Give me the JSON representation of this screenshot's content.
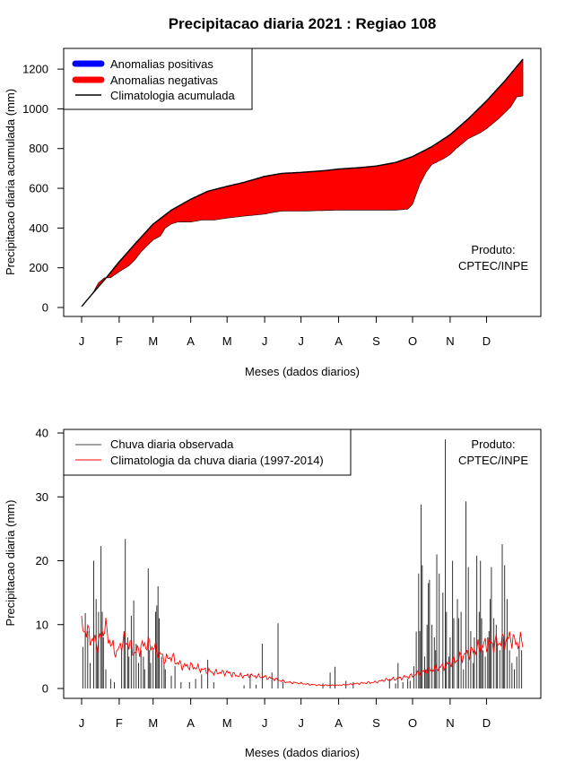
{
  "title": "Precipitacao diaria 2021 : Regiao 108",
  "chart_data": [
    {
      "type": "area",
      "name": "accumulated",
      "ylabel": "Precipitacao diaria acumulada (mm)",
      "xlabel": "Meses (dados diarios)",
      "month_ticks": [
        "J",
        "F",
        "M",
        "A",
        "M",
        "J",
        "J",
        "A",
        "S",
        "O",
        "N",
        "D"
      ],
      "month_tick_days": [
        1,
        32,
        60,
        91,
        121,
        152,
        182,
        213,
        244,
        274,
        305,
        335
      ],
      "xlim": [
        1,
        365
      ],
      "ylim": [
        0,
        1250
      ],
      "yticks": [
        0,
        200,
        400,
        600,
        800,
        1000,
        1200
      ],
      "legend": {
        "position": "top-left",
        "items": [
          {
            "label": "Anomalias positivas",
            "color": "#0000ff",
            "kind": "thick"
          },
          {
            "label": "Anomalias negativas",
            "color": "#ff0000",
            "kind": "thick"
          },
          {
            "label": "Climatologia acumulada",
            "color": "#000000",
            "kind": "line"
          }
        ]
      },
      "annotation": [
        "Produto:",
        "CPTEC/INPE"
      ],
      "colors": {
        "negative": "#ff0000",
        "positive": "#0000ff",
        "line": "#000000"
      },
      "climatology_cumulative": {
        "days": [
          1,
          10,
          20,
          32,
          45,
          60,
          75,
          91,
          105,
          121,
          135,
          152,
          166,
          182,
          200,
          213,
          230,
          244,
          260,
          274,
          290,
          305,
          320,
          335,
          350,
          365
        ],
        "values": [
          5,
          70,
          140,
          230,
          320,
          420,
          490,
          545,
          585,
          610,
          630,
          660,
          675,
          680,
          688,
          697,
          704,
          712,
          730,
          760,
          810,
          870,
          950,
          1040,
          1140,
          1250
        ]
      },
      "observed_cumulative": {
        "days": [
          1,
          10,
          15,
          20,
          25,
          32,
          40,
          45,
          50,
          60,
          66,
          70,
          75,
          80,
          91,
          100,
          110,
          121,
          135,
          152,
          160,
          166,
          182,
          200,
          213,
          230,
          244,
          260,
          270,
          274,
          280,
          285,
          290,
          300,
          305,
          310,
          320,
          330,
          335,
          345,
          350,
          355,
          358,
          360,
          365
        ],
        "values": [
          5,
          70,
          125,
          150,
          150,
          180,
          210,
          240,
          280,
          340,
          360,
          400,
          420,
          430,
          430,
          440,
          440,
          450,
          460,
          470,
          480,
          485,
          485,
          488,
          490,
          490,
          490,
          490,
          495,
          520,
          620,
          680,
          720,
          750,
          770,
          800,
          850,
          880,
          900,
          950,
          980,
          1010,
          1040,
          1060,
          1065
        ]
      }
    },
    {
      "type": "bar",
      "name": "daily",
      "ylabel": "Precipitacao diaria (mm)",
      "xlabel": "Meses (dados diarios)",
      "month_ticks": [
        "J",
        "F",
        "M",
        "A",
        "M",
        "J",
        "J",
        "A",
        "S",
        "O",
        "N",
        "D"
      ],
      "month_tick_days": [
        1,
        32,
        60,
        91,
        121,
        152,
        182,
        213,
        244,
        274,
        305,
        335
      ],
      "xlim": [
        1,
        365
      ],
      "ylim": [
        0,
        40
      ],
      "yticks": [
        0,
        10,
        20,
        30,
        40
      ],
      "legend": {
        "position": "top-left",
        "items": [
          {
            "label": "Chuva diaria observada",
            "color": "#444444",
            "kind": "line"
          },
          {
            "label": "Climatologia da chuva diaria (1997-2014)",
            "color": "#ff0000",
            "kind": "line"
          }
        ]
      },
      "annotation": [
        "Produto:",
        "CPTEC/INPE"
      ],
      "colors": {
        "bars": "#333333",
        "climatology": "#ff0000"
      },
      "observed_peaks": [
        {
          "day": 2,
          "value": 6.5
        },
        {
          "day": 4,
          "value": 11.8
        },
        {
          "day": 6,
          "value": 9.0
        },
        {
          "day": 8,
          "value": 4.0
        },
        {
          "day": 11,
          "value": 20.0
        },
        {
          "day": 13,
          "value": 14.0
        },
        {
          "day": 14,
          "value": 6.0
        },
        {
          "day": 15,
          "value": 12.0
        },
        {
          "day": 17,
          "value": 22.3
        },
        {
          "day": 18,
          "value": 12.0
        },
        {
          "day": 19,
          "value": 8.0
        },
        {
          "day": 21,
          "value": 3.0
        },
        {
          "day": 25,
          "value": 1.5
        },
        {
          "day": 28,
          "value": 1.0
        },
        {
          "day": 34,
          "value": 6.0
        },
        {
          "day": 36,
          "value": 9.0
        },
        {
          "day": 37,
          "value": 23.4
        },
        {
          "day": 39,
          "value": 8.0
        },
        {
          "day": 40,
          "value": 5.0
        },
        {
          "day": 42,
          "value": 11.4
        },
        {
          "day": 44,
          "value": 13.8
        },
        {
          "day": 46,
          "value": 7.0
        },
        {
          "day": 48,
          "value": 4.0
        },
        {
          "day": 50,
          "value": 6.0
        },
        {
          "day": 52,
          "value": 5.0
        },
        {
          "day": 53,
          "value": 3.0
        },
        {
          "day": 56,
          "value": 18.8
        },
        {
          "day": 57,
          "value": 6.0
        },
        {
          "day": 58,
          "value": 4.0
        },
        {
          "day": 60,
          "value": 6.0
        },
        {
          "day": 62,
          "value": 12.0
        },
        {
          "day": 63,
          "value": 13.0
        },
        {
          "day": 64,
          "value": 16.0
        },
        {
          "day": 65,
          "value": 11.0
        },
        {
          "day": 67,
          "value": 5.0
        },
        {
          "day": 69,
          "value": 4.0
        },
        {
          "day": 70,
          "value": 3.0
        },
        {
          "day": 75,
          "value": 2.0
        },
        {
          "day": 78,
          "value": 3.5
        },
        {
          "day": 83,
          "value": 1.0
        },
        {
          "day": 90,
          "value": 1.0
        },
        {
          "day": 95,
          "value": 1.5
        },
        {
          "day": 100,
          "value": 2.2
        },
        {
          "day": 105,
          "value": 4.5
        },
        {
          "day": 110,
          "value": 1.0
        },
        {
          "day": 135,
          "value": 0.5
        },
        {
          "day": 140,
          "value": 2.2
        },
        {
          "day": 145,
          "value": 0.6
        },
        {
          "day": 150,
          "value": 7.0
        },
        {
          "day": 158,
          "value": 2.5
        },
        {
          "day": 163,
          "value": 10.2
        },
        {
          "day": 167,
          "value": 1.0
        },
        {
          "day": 200,
          "value": 0.8
        },
        {
          "day": 206,
          "value": 2.5
        },
        {
          "day": 210,
          "value": 3.4
        },
        {
          "day": 219,
          "value": 1.2
        },
        {
          "day": 225,
          "value": 1.0
        },
        {
          "day": 255,
          "value": 1.5
        },
        {
          "day": 260,
          "value": 0.8
        },
        {
          "day": 262,
          "value": 4.0
        },
        {
          "day": 266,
          "value": 1.0
        },
        {
          "day": 270,
          "value": 1.5
        },
        {
          "day": 272,
          "value": 1.2
        },
        {
          "day": 275,
          "value": 3.5
        },
        {
          "day": 277,
          "value": 8.9
        },
        {
          "day": 279,
          "value": 18.0
        },
        {
          "day": 280,
          "value": 9.0
        },
        {
          "day": 281,
          "value": 28.8
        },
        {
          "day": 282,
          "value": 19.3
        },
        {
          "day": 284,
          "value": 5.0
        },
        {
          "day": 285,
          "value": 3.0
        },
        {
          "day": 286,
          "value": 10.0
        },
        {
          "day": 287,
          "value": 16.5
        },
        {
          "day": 288,
          "value": 17.0
        },
        {
          "day": 290,
          "value": 10.0
        },
        {
          "day": 292,
          "value": 8.0
        },
        {
          "day": 293,
          "value": 6.0
        },
        {
          "day": 294,
          "value": 21.0
        },
        {
          "day": 296,
          "value": 18.0
        },
        {
          "day": 299,
          "value": 15.0
        },
        {
          "day": 301,
          "value": 39.0
        },
        {
          "day": 302,
          "value": 12.0
        },
        {
          "day": 304,
          "value": 5.0
        },
        {
          "day": 305,
          "value": 8.0
        },
        {
          "day": 307,
          "value": 20.0
        },
        {
          "day": 308,
          "value": 11.0
        },
        {
          "day": 311,
          "value": 14.0
        },
        {
          "day": 312,
          "value": 11.0
        },
        {
          "day": 314,
          "value": 12.0
        },
        {
          "day": 316,
          "value": 3.0
        },
        {
          "day": 318,
          "value": 29.3
        },
        {
          "day": 320,
          "value": 19.0
        },
        {
          "day": 322,
          "value": 9.0
        },
        {
          "day": 324,
          "value": 4.0
        },
        {
          "day": 325,
          "value": 8.0
        },
        {
          "day": 327,
          "value": 20.8
        },
        {
          "day": 329,
          "value": 12.0
        },
        {
          "day": 330,
          "value": 20.0
        },
        {
          "day": 331,
          "value": 11.0
        },
        {
          "day": 332,
          "value": 6.0
        },
        {
          "day": 334,
          "value": 5.0
        },
        {
          "day": 336,
          "value": 8.0
        },
        {
          "day": 337,
          "value": 9.0
        },
        {
          "day": 338,
          "value": 14.0
        },
        {
          "day": 339,
          "value": 19.0
        },
        {
          "day": 341,
          "value": 11.0
        },
        {
          "day": 343,
          "value": 10.0
        },
        {
          "day": 344,
          "value": 7.0
        },
        {
          "day": 346,
          "value": 6.0
        },
        {
          "day": 348,
          "value": 22.6
        },
        {
          "day": 349,
          "value": 8.0
        },
        {
          "day": 350,
          "value": 19.3
        },
        {
          "day": 352,
          "value": 14.0
        },
        {
          "day": 354,
          "value": 6.0
        },
        {
          "day": 356,
          "value": 4.0
        },
        {
          "day": 358,
          "value": 3.0
        },
        {
          "day": 360,
          "value": 5.0
        },
        {
          "day": 362,
          "value": 7.0
        },
        {
          "day": 364,
          "value": 6.0
        }
      ],
      "climatology_daily": {
        "days": [
          1,
          5,
          10,
          15,
          20,
          25,
          30,
          35,
          40,
          45,
          50,
          55,
          60,
          65,
          70,
          75,
          80,
          85,
          91,
          100,
          110,
          121,
          130,
          140,
          152,
          160,
          170,
          182,
          190,
          200,
          213,
          220,
          230,
          244,
          250,
          260,
          274,
          280,
          290,
          300,
          305,
          310,
          320,
          330,
          335,
          340,
          350,
          355,
          360,
          365
        ],
        "values": [
          9.5,
          9.0,
          7.5,
          7.2,
          9.8,
          7.0,
          5.5,
          7.5,
          7.0,
          5.5,
          6.5,
          7.0,
          6.5,
          5.5,
          4.5,
          5.0,
          4.0,
          3.5,
          3.5,
          3.0,
          2.5,
          2.5,
          2.0,
          2.0,
          1.8,
          1.5,
          1.0,
          0.8,
          0.6,
          0.5,
          0.5,
          0.6,
          0.8,
          1.0,
          1.3,
          1.5,
          2.0,
          2.5,
          3.0,
          3.5,
          4.0,
          4.5,
          5.5,
          6.5,
          7.0,
          7.0,
          7.5,
          8.0,
          7.0,
          7.5
        ]
      }
    }
  ]
}
